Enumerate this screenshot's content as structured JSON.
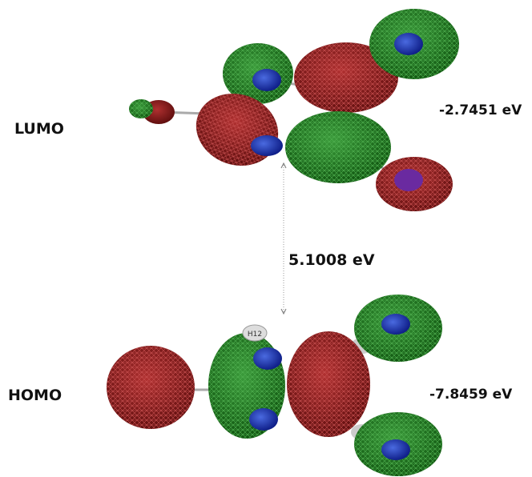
{
  "lumo": {
    "label": "LUMO",
    "energy": "-2.7451 eV"
  },
  "homo": {
    "label": "HOMO",
    "energy": "-7.8459 eV"
  },
  "gap": "5.1008 eV",
  "atom_label": "H12"
}
